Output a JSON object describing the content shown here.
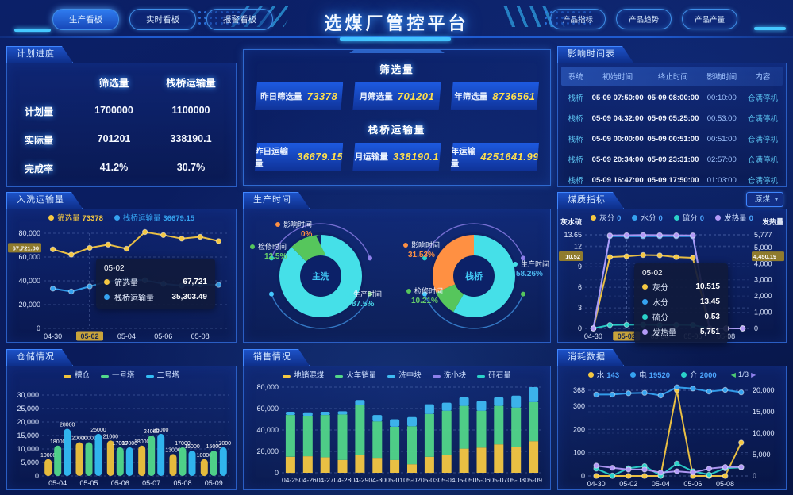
{
  "header": {
    "title": "选煤厂管控平台",
    "left_buttons": [
      "生产看板",
      "实时看板",
      "报警看板"
    ],
    "right_buttons": [
      "产品指标",
      "产品趋势",
      "产品产量"
    ]
  },
  "panels": {
    "plan": "计划进度",
    "impact": "影响时间表",
    "washing": "入洗运输量",
    "production": "生产时间",
    "quality": "煤质指标",
    "storage": "仓储情况",
    "sales": "销售情况",
    "consumption": "消耗数据"
  },
  "plan_panel": {
    "col1": "筛选量",
    "col2": "栈桥运输量",
    "rows": [
      {
        "label": "计划量",
        "v1": "1700000",
        "v2": "1100000"
      },
      {
        "label": "实际量",
        "v1": "701201",
        "v2": "338190.1"
      },
      {
        "label": "完成率",
        "v1": "41.2%",
        "v2": "30.7%"
      }
    ]
  },
  "stats_panel": {
    "section1": {
      "title": "筛选量",
      "items": [
        {
          "label": "昨日筛选量",
          "value": "73378"
        },
        {
          "label": "月筛选量",
          "value": "701201"
        },
        {
          "label": "年筛选量",
          "value": "8736561"
        }
      ]
    },
    "section2": {
      "title": "栈桥运输量",
      "items": [
        {
          "label": "昨日运输量",
          "value": "36679.15"
        },
        {
          "label": "月运输量",
          "value": "338190.1"
        },
        {
          "label": "年运输量",
          "value": "4251641.99"
        }
      ]
    }
  },
  "impact_panel": {
    "columns": [
      "系统",
      "初始时间",
      "终止时间",
      "影响时间",
      "内容"
    ],
    "rows": [
      [
        "栈桥",
        "05-09 07:50:00",
        "05-09 08:00:00",
        "00:10:00",
        "仓满停机"
      ],
      [
        "栈桥",
        "05-09 04:32:00",
        "05-09 05:25:00",
        "00:53:00",
        "仓满停机"
      ],
      [
        "栈桥",
        "05-09 00:00:00",
        "05-09 00:51:00",
        "00:51:00",
        "仓满停机"
      ],
      [
        "栈桥",
        "05-09 20:34:00",
        "05-09 23:31:00",
        "02:57:00",
        "仓满停机"
      ],
      [
        "栈桥",
        "05-09 16:47:00",
        "05-09 17:50:00",
        "01:03:00",
        "仓满停机"
      ]
    ]
  },
  "quality_panel": {
    "dropdown_value": "原煤"
  },
  "chart_data": [
    {
      "id": "washing",
      "type": "line",
      "x": [
        "04-30",
        "05-01",
        "05-02",
        "05-03",
        "05-04",
        "05-05",
        "05-06",
        "05-07",
        "05-08",
        "05-09"
      ],
      "x_tick_every": 2,
      "x_highlight": "05-02",
      "left_axis": {
        "max": 80000,
        "ticks": [
          {
            "v": 0,
            "t": "0"
          },
          {
            "v": 20000,
            "t": "20,000"
          },
          {
            "v": 40000,
            "t": "40,000"
          },
          {
            "v": 60000,
            "t": "60,000"
          },
          {
            "v": 80000,
            "t": "80,000"
          }
        ]
      },
      "series": [
        {
          "name": "筛选量",
          "color": "#f5c842",
          "axis": "L",
          "legend_value": "73378",
          "values": [
            66500,
            62000,
            67721,
            70500,
            67000,
            81000,
            78500,
            75500,
            77000,
            73378
          ]
        },
        {
          "name": "栈桥运输量",
          "color": "#35a2f0",
          "axis": "L",
          "legend_value": "36679.15",
          "values": [
            33500,
            31000,
            35303.49,
            39500,
            41000,
            40500,
            37500,
            36000,
            37000,
            36679.15
          ]
        }
      ],
      "marker_left": {
        "text": "67,721.00",
        "value": 67721
      },
      "tooltip": {
        "title": "05-02",
        "rows": [
          {
            "name": "筛选量",
            "value": "67,721",
            "color": "#f5c842"
          },
          {
            "name": "栈桥运输量",
            "value": "35,303.49",
            "color": "#35a2f0"
          }
        ]
      }
    },
    {
      "id": "production",
      "type": "pie",
      "donuts": [
        {
          "center": "主洗",
          "slices": [
            {
              "name": "生产时间",
              "pct": 87.5,
              "pct_label": "87.5%",
              "color": "#45e0e8",
              "pct_color": "#49d6e8"
            },
            {
              "name": "检修时间",
              "pct": 12.5,
              "pct_label": "12.5%",
              "color": "#56c65c",
              "pct_color": "#67d06a"
            },
            {
              "name": "影响时间",
              "pct": 0,
              "pct_label": "0%",
              "color": "#ff9042",
              "pct_color": "#ff9042"
            }
          ]
        },
        {
          "center": "栈桥",
          "slices": [
            {
              "name": "生产时间",
              "pct": 58.26,
              "pct_label": "58.26%",
              "color": "#45e0e8",
              "pct_color": "#4db8f0"
            },
            {
              "name": "检修时间",
              "pct": 10.21,
              "pct_label": "10.21%",
              "color": "#56c65c",
              "pct_color": "#67d06a"
            },
            {
              "name": "影响时间",
              "pct": 31.53,
              "pct_label": "31.53%",
              "color": "#ff9042",
              "pct_color": "#ff9042"
            }
          ]
        }
      ]
    },
    {
      "id": "quality",
      "type": "line",
      "x": [
        "04-30",
        "05-01",
        "05-02",
        "05-03",
        "05-04",
        "05-05",
        "05-06",
        "05-07",
        "05-08",
        "05-09"
      ],
      "x_tick_every": 2,
      "x_highlight": "05-02",
      "left_axis": {
        "title": "灰水硫",
        "max": 13.65,
        "ticks": [
          {
            "v": 0,
            "t": "0"
          },
          {
            "v": 3,
            "t": "3"
          },
          {
            "v": 6,
            "t": "6"
          },
          {
            "v": 9,
            "t": "9"
          },
          {
            "v": 12,
            "t": "12"
          },
          {
            "v": 13.65,
            "t": "13.65"
          }
        ]
      },
      "right_axis": {
        "title": "发热量",
        "max": 5777,
        "ticks": [
          {
            "v": 0,
            "t": "0"
          },
          {
            "v": 1000,
            "t": "1,000"
          },
          {
            "v": 2000,
            "t": "2,000"
          },
          {
            "v": 3000,
            "t": "3,000"
          },
          {
            "v": 4000,
            "t": "4,000"
          },
          {
            "v": 5000,
            "t": "5,000"
          },
          {
            "v": 5777,
            "t": "5,777"
          }
        ]
      },
      "series": [
        {
          "name": "灰分",
          "color": "#f5c842",
          "axis": "L",
          "legend_value": "0",
          "values": [
            0,
            10.4,
            10.515,
            10.7,
            10.65,
            10.4,
            10.3,
            0,
            0,
            0
          ]
        },
        {
          "name": "水分",
          "color": "#35a2f0",
          "axis": "L",
          "legend_value": "0",
          "values": [
            0,
            13.45,
            13.45,
            13.45,
            13.45,
            13.45,
            13.45,
            0,
            0,
            0
          ]
        },
        {
          "name": "硫分",
          "color": "#2ad1c9",
          "axis": "L",
          "legend_value": "0",
          "values": [
            0,
            0.5,
            0.53,
            0.55,
            0.5,
            0.52,
            0.5,
            0,
            0,
            0
          ]
        },
        {
          "name": "发热量",
          "color": "#b39af7",
          "axis": "R",
          "legend_value": "0",
          "values": [
            0,
            5740,
            5751,
            5760,
            5755,
            5750,
            5745,
            0,
            0,
            0
          ]
        }
      ],
      "marker_left": {
        "text": "10.52",
        "value": 10.52
      },
      "marker_right": {
        "text": "4,450.19",
        "value": 4450.19
      },
      "tooltip": {
        "title": "05-02",
        "rows": [
          {
            "name": "灰分",
            "value": "10.515",
            "color": "#f5c842"
          },
          {
            "name": "水分",
            "value": "13.45",
            "color": "#35a2f0"
          },
          {
            "name": "硫分",
            "value": "0.53",
            "color": "#2ad1c9"
          },
          {
            "name": "发热量",
            "value": "5,751",
            "color": "#b39af7"
          }
        ]
      }
    },
    {
      "id": "storage",
      "type": "grouped_bar",
      "categories": [
        "05-04",
        "05-05",
        "05-06",
        "05-07",
        "05-08",
        "05-09"
      ],
      "left_axis": {
        "max": 30000,
        "ticks": [
          {
            "v": 0,
            "t": "0"
          },
          {
            "v": 5000,
            "t": "5,000"
          },
          {
            "v": 10000,
            "t": "10,000"
          },
          {
            "v": 15000,
            "t": "15,000"
          },
          {
            "v": 20000,
            "t": "20,000"
          },
          {
            "v": 25000,
            "t": "25,000"
          },
          {
            "v": 30000,
            "t": "30,000"
          }
        ]
      },
      "bar_value_max": 48000,
      "series": [
        {
          "name": "槽仓",
          "color": "#f0c33c",
          "values": [
            10000,
            20000,
            21000,
            18000,
            13000,
            10000
          ]
        },
        {
          "name": "一号塔",
          "color": "#52d98b",
          "values": [
            18000,
            20000,
            17000,
            24000,
            17000,
            15000
          ]
        },
        {
          "name": "二号塔",
          "color": "#33bdf5",
          "values": [
            28000,
            25000,
            17000,
            25000,
            15000,
            17000
          ]
        }
      ]
    },
    {
      "id": "sales",
      "type": "stacked_bar",
      "categories": [
        "04-25",
        "04-26",
        "04-27",
        "04-28",
        "04-29",
        "04-30",
        "05-01",
        "05-02",
        "05-03",
        "05-04",
        "05-05",
        "05-06",
        "05-07",
        "05-08",
        "05-09"
      ],
      "left_axis": {
        "max": 80000,
        "ticks": [
          {
            "v": 0,
            "t": "0"
          },
          {
            "v": 20000,
            "t": "20,000"
          },
          {
            "v": 40000,
            "t": "40,000"
          },
          {
            "v": 60000,
            "t": "60,000"
          },
          {
            "v": 80000,
            "t": "80,000"
          }
        ]
      },
      "series": [
        {
          "name": "地销混煤",
          "color": "#f5c842",
          "values": [
            15000,
            15500,
            14500,
            12000,
            17000,
            14000,
            12000,
            8000,
            15000,
            16500,
            22500,
            23500,
            26500,
            24000,
            29500
          ]
        },
        {
          "name": "火车销量",
          "color": "#52d689",
          "values": [
            39000,
            37500,
            39500,
            42500,
            46000,
            34000,
            31000,
            35500,
            40000,
            41500,
            40000,
            34500,
            36000,
            37000,
            36500
          ]
        },
        {
          "name": "洗中块",
          "color": "#3fb9f2",
          "values": [
            3000,
            3500,
            3000,
            3000,
            5000,
            6000,
            7000,
            8500,
            9000,
            7500,
            8000,
            9000,
            8000,
            11000,
            14000
          ]
        },
        {
          "name": "洗小块",
          "color": "#8d7fea",
          "values": [
            0,
            0,
            0,
            0,
            0,
            0,
            0,
            0,
            0,
            0,
            0,
            0,
            0,
            0,
            0
          ]
        },
        {
          "name": "矸石量",
          "color": "#2ad1c9",
          "values": [
            0,
            0,
            0,
            0,
            0,
            0,
            0,
            0,
            0,
            0,
            0,
            0,
            0,
            0,
            0
          ]
        }
      ]
    },
    {
      "id": "consumption",
      "type": "line",
      "x": [
        "04-30",
        "05-01",
        "05-02",
        "05-03",
        "05-04",
        "05-05",
        "05-06",
        "05-07",
        "05-08",
        "05-09"
      ],
      "x_tick_every": 2,
      "left_axis": {
        "max": 368,
        "ticks": [
          {
            "v": 0,
            "t": "0"
          },
          {
            "v": 100,
            "t": "100"
          },
          {
            "v": 200,
            "t": "200"
          },
          {
            "v": 300,
            "t": "300"
          },
          {
            "v": 368,
            "t": "368"
          }
        ]
      },
      "right_axis": {
        "max": 20000,
        "ticks": [
          {
            "v": 0,
            "t": "0"
          },
          {
            "v": 5000,
            "t": "5,000"
          },
          {
            "v": 10000,
            "t": "10,000"
          },
          {
            "v": 15000,
            "t": "15,000"
          },
          {
            "v": 20000,
            "t": "20,000"
          }
        ]
      },
      "pager": "1/3",
      "series": [
        {
          "name": "水",
          "color": "#f5c842",
          "axis": "L",
          "legend_value": "143",
          "values": [
            0,
            0,
            0,
            0,
            0,
            368,
            0,
            0,
            0,
            143
          ]
        },
        {
          "name": "电",
          "color": "#35a2f0",
          "axis": "R",
          "legend_value": "19520",
          "values": [
            19000,
            19000,
            19300,
            19400,
            18800,
            20700,
            20400,
            19700,
            20100,
            19520
          ]
        },
        {
          "name": "介",
          "color": "#2ad1c9",
          "axis": "R",
          "legend_value": "2000",
          "values": [
            1700,
            100,
            1800,
            2300,
            100,
            2900,
            1100,
            300,
            1800,
            2000
          ]
        },
        {
          "name": "",
          "color": "#b39af7",
          "axis": "R",
          "legend_value": "",
          "values": [
            2400,
            1900,
            1500,
            1500,
            800,
            1100,
            800,
            1700,
            2100,
            2100
          ]
        }
      ]
    }
  ]
}
